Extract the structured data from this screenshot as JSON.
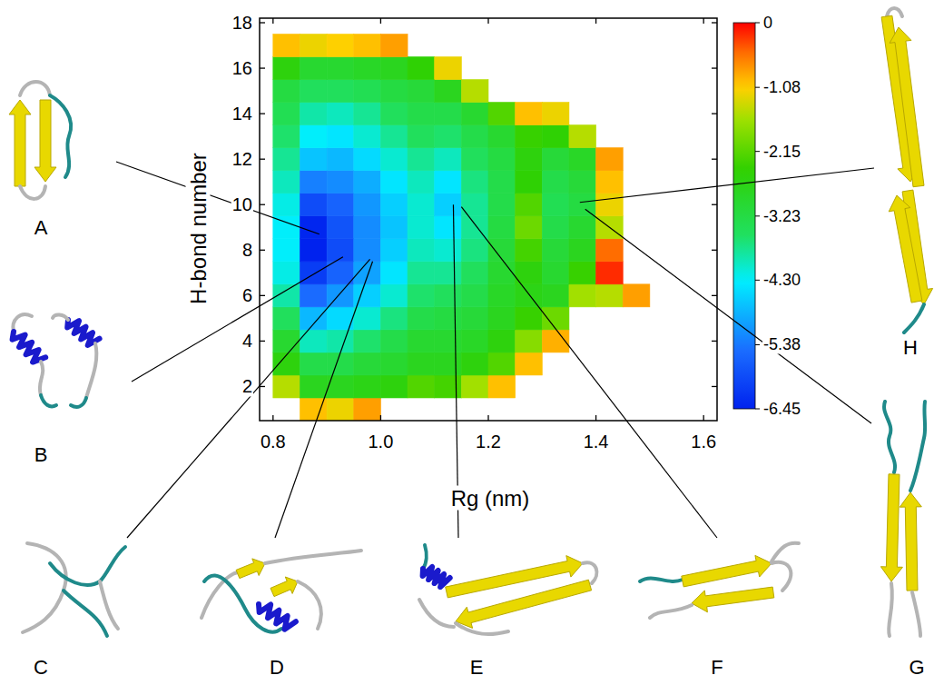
{
  "chart_data": {
    "type": "heatmap",
    "x_label": "Rg (nm)",
    "y_label": "H-bond number",
    "xlim": [
      0.775,
      1.625
    ],
    "xticks": [
      0.8,
      {
        "value": 1,
        "label": "1.0"
      },
      1.2,
      1.4,
      1.6
    ],
    "ylim": [
      0.5,
      18.2
    ],
    "yticks": [
      2,
      4,
      6,
      8,
      10,
      12,
      14,
      16,
      18
    ],
    "heatmap": {
      "x": [
        0.825,
        0.875,
        0.925,
        0.975,
        1.025,
        1.075,
        1.125,
        1.175,
        1.225,
        1.275,
        1.325,
        1.375,
        1.425,
        1.475
      ],
      "y": [
        1,
        2,
        3,
        4,
        5,
        6,
        7,
        8,
        9,
        10,
        11,
        12,
        13,
        14,
        15,
        16,
        17
      ],
      "values": [
        [
          null,
          -1.0,
          -1.2,
          -0.8,
          null,
          null,
          null,
          null,
          null,
          null,
          null,
          null,
          null,
          null
        ],
        [
          -1.5,
          -2.8,
          -2.8,
          -2.7,
          -2.6,
          -2.2,
          -2.3,
          -1.6,
          -1.0,
          null,
          null,
          null,
          null,
          null
        ],
        [
          -2.6,
          -3.3,
          -3.3,
          -3.1,
          -3.0,
          -2.8,
          -2.8,
          -2.6,
          -2.2,
          -1.0,
          null,
          null,
          null,
          null
        ],
        [
          -3.0,
          -4.0,
          -3.9,
          -3.6,
          -3.3,
          -3.0,
          -3.0,
          -2.9,
          -2.6,
          -1.8,
          -0.9,
          null,
          null,
          null
        ],
        [
          -3.5,
          -4.8,
          -4.5,
          -4.1,
          -3.7,
          -3.3,
          -3.2,
          -3.1,
          -2.8,
          -2.4,
          -2.0,
          null,
          null,
          null
        ],
        [
          -3.9,
          -5.5,
          -5.1,
          -4.6,
          -4.1,
          -3.6,
          -3.5,
          -3.3,
          -2.9,
          -2.7,
          -2.8,
          -1.6,
          -1.5,
          -0.8
        ],
        [
          -4.2,
          -6.1,
          -5.6,
          -5.0,
          -4.4,
          -3.8,
          -3.8,
          -3.5,
          -3.0,
          -2.6,
          -3.0,
          -2.4,
          -0.2,
          null
        ],
        [
          -4.3,
          -6.45,
          -5.9,
          -5.2,
          -4.6,
          -4.0,
          -4.1,
          -3.7,
          -3.1,
          -2.3,
          -3.1,
          -2.8,
          -0.5,
          null
        ],
        [
          -4.3,
          -6.4,
          -5.8,
          -5.2,
          -4.7,
          -4.1,
          -4.4,
          -3.8,
          -3.2,
          -2.0,
          -3.3,
          -3.0,
          -1.5,
          null
        ],
        [
          -4.2,
          -5.9,
          -5.6,
          -5.1,
          -4.6,
          -4.1,
          -4.6,
          -3.8,
          -3.3,
          -2.2,
          -3.4,
          -3.2,
          -1.2,
          null
        ],
        [
          -4.0,
          -5.3,
          -5.2,
          -4.9,
          -4.4,
          -4.0,
          -4.4,
          -3.7,
          -3.3,
          -2.5,
          -3.3,
          -3.1,
          -1.0,
          null
        ],
        [
          -3.8,
          -4.7,
          -4.8,
          -4.5,
          -4.1,
          -3.8,
          -4.0,
          -3.5,
          -3.2,
          -2.6,
          -3.1,
          -2.9,
          -0.8,
          null
        ],
        [
          -3.6,
          -4.3,
          -4.4,
          -4.1,
          -3.8,
          -3.5,
          -3.6,
          -3.3,
          -3.0,
          -2.4,
          -2.5,
          -1.5,
          null,
          null
        ],
        [
          -3.4,
          -3.9,
          -4.0,
          -3.8,
          -3.5,
          -3.3,
          -3.3,
          -3.0,
          -2.2,
          -1.0,
          -1.2,
          null,
          null,
          null
        ],
        [
          -3.2,
          -3.5,
          -3.5,
          -3.4,
          -3.2,
          -3.1,
          -2.8,
          -1.5,
          null,
          null,
          null,
          null,
          null,
          null
        ],
        [
          -2.6,
          -3.0,
          -3.0,
          -2.9,
          -2.8,
          -2.5,
          -1.2,
          null,
          null,
          null,
          null,
          null,
          null,
          null
        ],
        [
          -1.0,
          -1.2,
          -1.1,
          -1.0,
          -0.8,
          null,
          null,
          null,
          null,
          null,
          null,
          null,
          null,
          null
        ]
      ]
    },
    "colorbar": {
      "range": [
        -6.45,
        0
      ],
      "ticks": [
        0,
        -1.08,
        -2.15,
        -3.23,
        {
          "value": -4.3,
          "label": "-4.30"
        },
        -5.38,
        -6.45
      ]
    },
    "structures": [
      {
        "label": "A",
        "x": 0.886,
        "y": 8.7
      },
      {
        "label": "B",
        "x": 0.93,
        "y": 7.7
      },
      {
        "label": "C",
        "x": 0.98,
        "y": 7.6
      },
      {
        "label": "D",
        "x": 0.985,
        "y": 7.5
      },
      {
        "label": "E",
        "x": 1.135,
        "y": 10
      },
      {
        "label": "F",
        "x": 1.15,
        "y": 9.9
      },
      {
        "label": "G",
        "x": 1.38,
        "y": 9.8
      },
      {
        "label": "H",
        "x": 1.37,
        "y": 10.1
      }
    ]
  }
}
